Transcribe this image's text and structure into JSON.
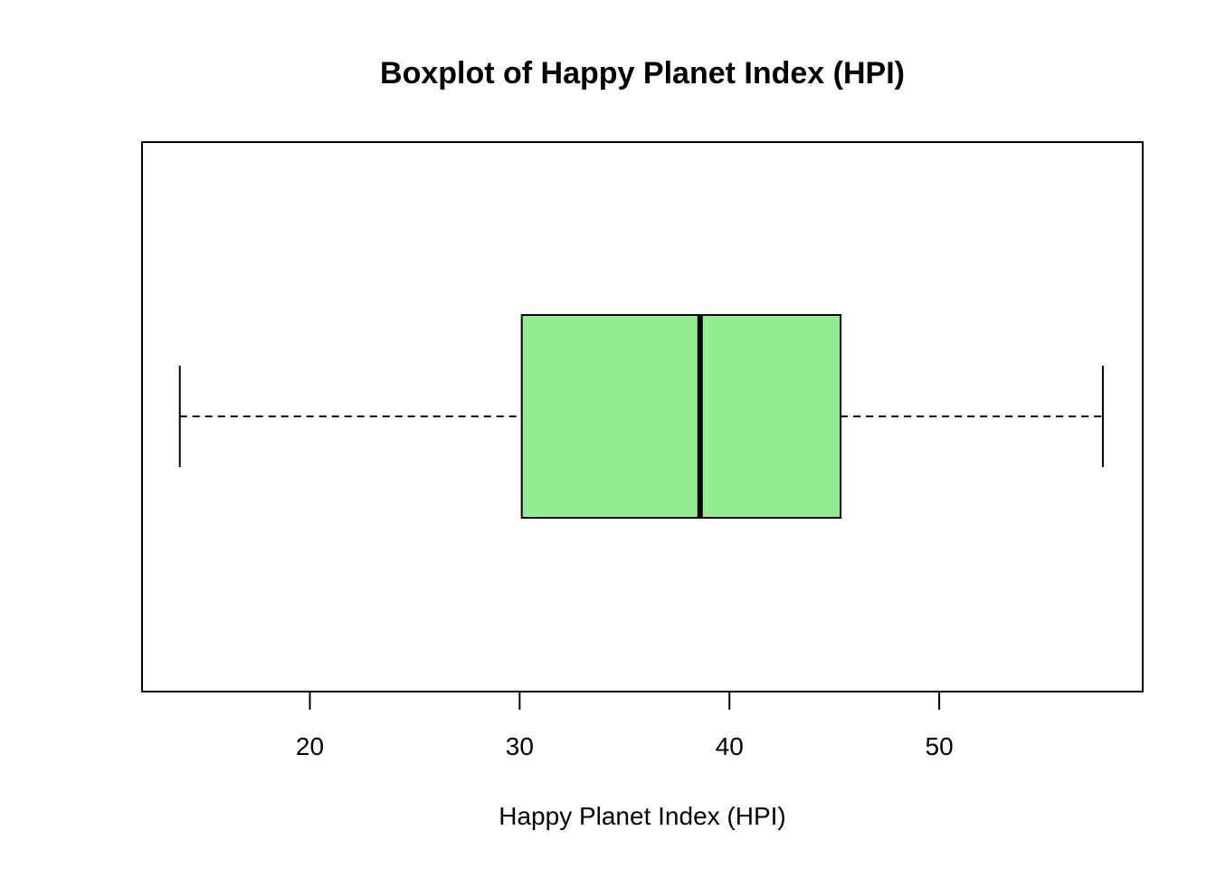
{
  "chart_data": {
    "type": "boxplot",
    "title": "Boxplot of Happy Planet Index (HPI)",
    "xlabel": "Happy Planet Index (HPI)",
    "ylabel": "",
    "orientation": "horizontal",
    "xlim": [
      12.0,
      59.7
    ],
    "ticks": [
      20,
      30,
      40,
      50
    ],
    "tick_labels": [
      "20",
      "30",
      "40",
      "50"
    ],
    "box": {
      "whisker_low": 13.8,
      "q1": 30.1,
      "median": 38.6,
      "q3": 45.3,
      "whisker_high": 57.8
    },
    "fill_color": "#90EE90",
    "frame": true,
    "grid": false,
    "legend": "none"
  }
}
